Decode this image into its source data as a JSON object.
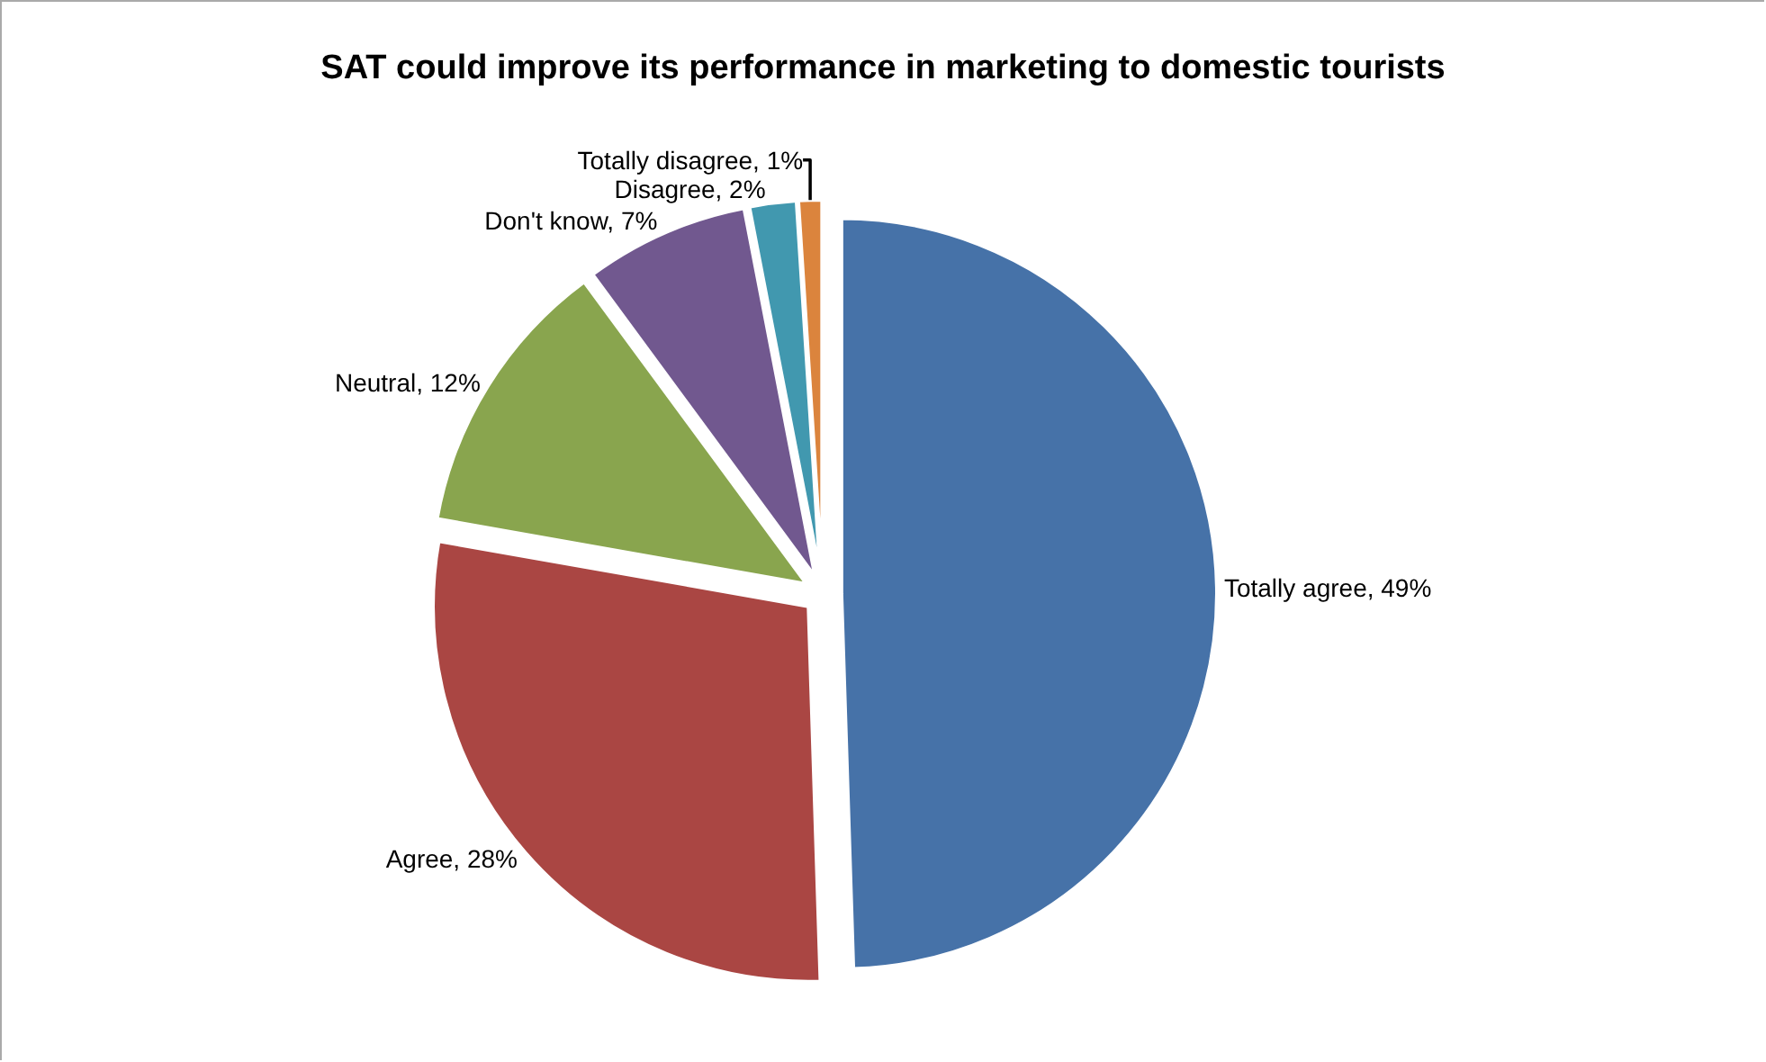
{
  "chart_data": {
    "type": "pie",
    "title": "SAT could improve its performance in marketing to domestic tourists",
    "categories": [
      "Totally agree",
      "Agree",
      "Neutral",
      "Don't know",
      "Disagree",
      "Totally disagree"
    ],
    "values": [
      49,
      28,
      12,
      7,
      2,
      1
    ],
    "value_labels": [
      "49%",
      "28%",
      "12%",
      "7%",
      "2%",
      "1%"
    ],
    "colors": [
      "#4672a8",
      "#aa4643",
      "#89a54e",
      "#71588f",
      "#4198af",
      "#db843d"
    ],
    "legend": false
  }
}
